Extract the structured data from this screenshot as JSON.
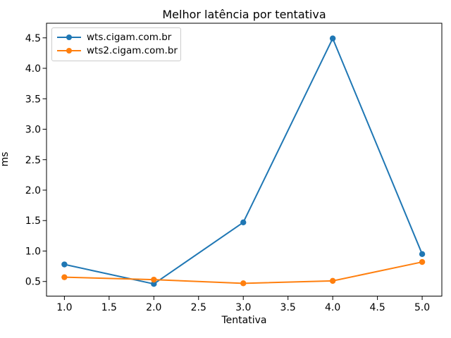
{
  "chart_data": {
    "type": "line",
    "title": "Melhor latência por tentativa",
    "xlabel": "Tentativa",
    "ylabel": "ms",
    "x": [
      1,
      2,
      3,
      4,
      5
    ],
    "series": [
      {
        "name": "wts.cigam.com.br",
        "color": "#1f77b4",
        "values": [
          0.78,
          0.46,
          1.47,
          4.49,
          0.95
        ]
      },
      {
        "name": "wts2.cigam.com.br",
        "color": "#ff7f0e",
        "values": [
          0.57,
          0.53,
          0.47,
          0.51,
          0.82
        ]
      }
    ],
    "xticks": [
      1.0,
      1.5,
      2.0,
      2.5,
      3.0,
      3.5,
      4.0,
      4.5,
      5.0
    ],
    "yticks": [
      0.5,
      1.0,
      1.5,
      2.0,
      2.5,
      3.0,
      3.5,
      4.0,
      4.5
    ],
    "xlim": [
      0.8,
      5.22
    ],
    "ylim": [
      0.26,
      4.74
    ],
    "grid": false,
    "legend_position": "upper left",
    "marker": "circle",
    "axis_color": "#000000",
    "background": "#ffffff"
  }
}
